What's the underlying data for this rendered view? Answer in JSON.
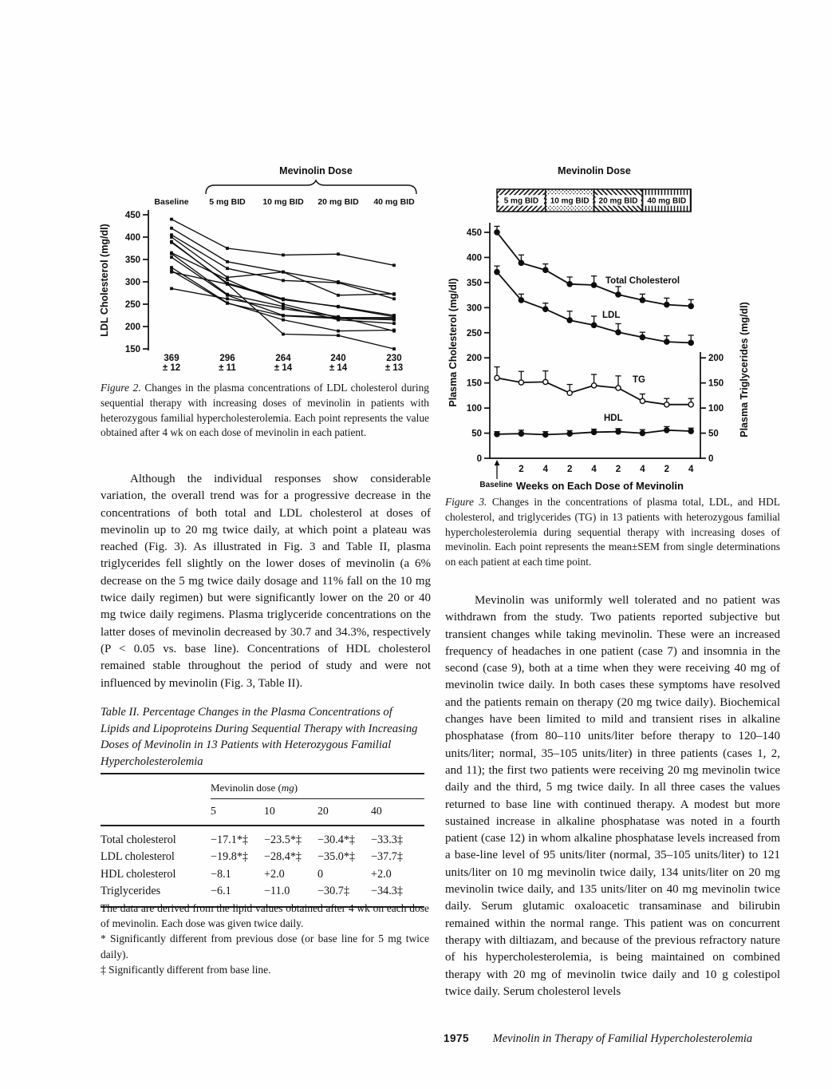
{
  "page": {
    "footer_page_number": "1975",
    "footer_running_title": "Mevinolin in Therapy of Familial Hypercholesterolemia"
  },
  "left_column": {
    "figure2_caption_label": "Figure 2.",
    "figure2_caption_text": "Changes in the plasma concentrations of LDL cholesterol during sequential therapy with increasing doses of mevinolin in patients with heterozygous familial hypercholesterolemia. Each point represents the value obtained after 4 wk on each dose of mevinolin in each patient.",
    "paragraph": "Although the individual responses show considerable variation, the overall trend was for a progressive decrease in the concentrations of both total and LDL cholesterol at doses of mevinolin up to 20 mg twice daily, at which point a plateau was reached (Fig. 3). As illustrated in Fig. 3 and Table II, plasma triglycerides fell slightly on the lower doses of mevinolin (a 6% decrease on the 5 mg twice daily dosage and 11% fall on the 10 mg twice daily regimen) but were significantly lower on the 20 or 40 mg twice daily regimens. Plasma triglyceride concentrations on the latter doses of mevinolin decreased by 30.7 and 34.3%, respectively (P < 0.05 vs. base line). Concentrations of HDL cholesterol remained stable throughout the period of study and were not influenced by mevinolin (Fig. 3, Table II)."
  },
  "table2": {
    "title": "Table II. Percentage Changes in the Plasma Concentrations of Lipids and Lipoproteins During Sequential Therapy with Increasing Doses of Mevinolin in 13 Patients with Heterozygous Familial Hypercholesterolemia",
    "dose_header_main": "Mevinolin dose (",
    "dose_header_unit": "mg",
    "dose_header_close": ")",
    "columns": [
      "5",
      "10",
      "20",
      "40"
    ],
    "rows": [
      {
        "label": "Total cholesterol",
        "values": [
          "−17.1*‡",
          "−23.5*‡",
          "−30.4*‡",
          "−33.3‡"
        ]
      },
      {
        "label": "LDL cholesterol",
        "values": [
          "−19.8*‡",
          "−28.4*‡",
          "−35.0*‡",
          "−37.7‡"
        ]
      },
      {
        "label": "HDL cholesterol",
        "values": [
          "−8.1",
          "+2.0",
          "0",
          "+2.0"
        ]
      },
      {
        "label": "Triglycerides",
        "values": [
          "−6.1",
          "−11.0",
          "−30.7‡",
          "−34.3‡"
        ]
      }
    ],
    "note_general": "The data are derived from the lipid values obtained after 4 wk on each dose of mevinolin. Each dose was given twice daily.",
    "note_star": "* Significantly different from previous dose (or base line for 5 mg twice daily).",
    "note_dagger": "‡ Significantly different from base line."
  },
  "right_column": {
    "figure3_caption_label": "Figure 3.",
    "figure3_caption_text": "Changes in the concentrations of plasma total, LDL, and HDL cholesterol, and triglycerides (TG) in 13 patients with heterozygous familial hypercholesterolemia during sequential therapy with increasing doses of mevinolin. Each point represents the mean±SEM from single determinations on each patient at each time point.",
    "paragraph": "Mevinolin was uniformly well tolerated and no patient was withdrawn from the study. Two patients reported subjective but transient changes while taking mevinolin. These were an increased frequency of headaches in one patient (case 7) and insomnia in the second (case 9), both at a time when they were receiving 40 mg of mevinolin twice daily. In both cases these symptoms have resolved and the patients remain on therapy (20 mg twice daily). Biochemical changes have been limited to mild and transient rises in alkaline phosphatase (from 80–110 units/liter before therapy to 120–140 units/liter; normal, 35–105 units/liter) in three patients (cases 1, 2, and 11); the first two patients were receiving 20 mg mevinolin twice daily and the third, 5 mg twice daily. In all three cases the values returned to base line with continued therapy. A modest but more sustained increase in alkaline phosphatase was noted in a fourth patient (case 12) in whom alkaline phosphatase levels increased from a base-line level of 95 units/liter (normal, 35–105 units/liter) to 121 units/liter on 10 mg mevinolin twice daily, 134 units/liter on 20 mg mevinolin twice daily, and 135 units/liter on 40 mg mevinolin twice daily. Serum glutamic oxaloacetic transaminase and bilirubin remained within the normal range. This patient was on concurrent therapy with diltiazam, and because of the previous refractory nature of his hypercholesterolemia, is being maintained on combined therapy with 20 mg of mevinolin twice daily and 10 g colestipol twice daily. Serum cholesterol levels"
  },
  "chart_data": [
    {
      "id": "figure2",
      "type": "line",
      "title": "Mevinolin Dose",
      "ylabel": "LDL Cholesterol (mg/dl)",
      "categories": [
        "Baseline",
        "5 mg BID",
        "10 mg BID",
        "20 mg BID",
        "40 mg BID"
      ],
      "ylim": [
        150,
        450
      ],
      "yticks": [
        450,
        400,
        350,
        300,
        250,
        200,
        150
      ],
      "grid": false,
      "series": [
        {
          "name": "patient-1",
          "values": [
            440,
            375,
            360,
            362,
            337
          ]
        },
        {
          "name": "patient-2",
          "values": [
            420,
            345,
            322,
            300,
            272
          ]
        },
        {
          "name": "patient-3",
          "values": [
            405,
            330,
            303,
            298,
            262
          ]
        },
        {
          "name": "patient-4",
          "values": [
            400,
            310,
            322,
            270,
            273
          ]
        },
        {
          "name": "patient-5",
          "values": [
            390,
            295,
            260,
            245,
            225
          ]
        },
        {
          "name": "patient-6",
          "values": [
            388,
            297,
            262,
            244,
            222
          ]
        },
        {
          "name": "patient-7",
          "values": [
            365,
            305,
            250,
            220,
            218
          ]
        },
        {
          "name": "patient-8",
          "values": [
            363,
            272,
            245,
            215,
            207
          ]
        },
        {
          "name": "patient-9",
          "values": [
            355,
            270,
            225,
            220,
            220
          ]
        },
        {
          "name": "patient-10",
          "values": [
            332,
            253,
            215,
            190,
            192
          ]
        },
        {
          "name": "patient-11",
          "values": [
            325,
            252,
            224,
            218,
            215
          ]
        },
        {
          "name": "patient-12",
          "values": [
            322,
            295,
            183,
            180,
            150
          ]
        },
        {
          "name": "patient-13",
          "values": [
            285,
            262,
            240,
            222,
            190
          ]
        }
      ],
      "means": [
        {
          "value": "369",
          "sem": "12"
        },
        {
          "value": "296",
          "sem": "11"
        },
        {
          "value": "264",
          "sem": "14"
        },
        {
          "value": "240",
          "sem": "14"
        },
        {
          "value": "230",
          "sem": "13"
        }
      ]
    },
    {
      "id": "figure3",
      "type": "line",
      "title": "Mevinolin Dose",
      "dose_bands": [
        "5 mg BID",
        "10 mg BID",
        "20 mg BID",
        "40 mg BID"
      ],
      "xlabel": "Weeks on Each Dose of Mevinolin",
      "ylabel_left": "Plasma Cholesterol (mg/dl)",
      "ylabel_right": "Plasma Triglycerides (mg/dl)",
      "x_tick_labels": [
        "Baseline",
        "2",
        "4",
        "2",
        "4",
        "2",
        "4",
        "2",
        "4"
      ],
      "ylim_left": [
        0,
        450
      ],
      "yticks_left": [
        450,
        400,
        350,
        300,
        250,
        200,
        150,
        100,
        50,
        0
      ],
      "yticks_right": [
        200,
        150,
        100,
        50,
        0
      ],
      "grid": false,
      "series": [
        {
          "name": "Total Cholesterol",
          "axis": "left",
          "marker": "filled",
          "values": [
            450,
            389,
            375,
            347,
            345,
            326,
            315,
            306,
            303
          ],
          "sem": [
            12,
            16,
            12,
            14,
            18,
            16,
            12,
            13,
            13
          ]
        },
        {
          "name": "LDL",
          "axis": "left",
          "marker": "filled",
          "values": [
            371,
            315,
            297,
            275,
            265,
            251,
            241,
            232,
            230
          ],
          "sem": [
            12,
            12,
            12,
            18,
            18,
            17,
            10,
            12,
            15
          ]
        },
        {
          "name": "TG",
          "axis": "right",
          "marker": "open",
          "values": [
            160,
            151,
            152,
            130,
            145,
            140,
            114,
            107,
            107
          ],
          "sem": [
            22,
            22,
            22,
            17,
            22,
            24,
            14,
            12,
            12
          ]
        },
        {
          "name": "HDL",
          "axis": "left",
          "marker": "filled",
          "values": [
            48,
            49,
            47,
            49,
            52,
            53,
            50,
            56,
            54
          ],
          "sem": [
            5,
            7,
            6,
            6,
            6,
            6,
            7,
            7,
            6
          ]
        }
      ]
    }
  ]
}
